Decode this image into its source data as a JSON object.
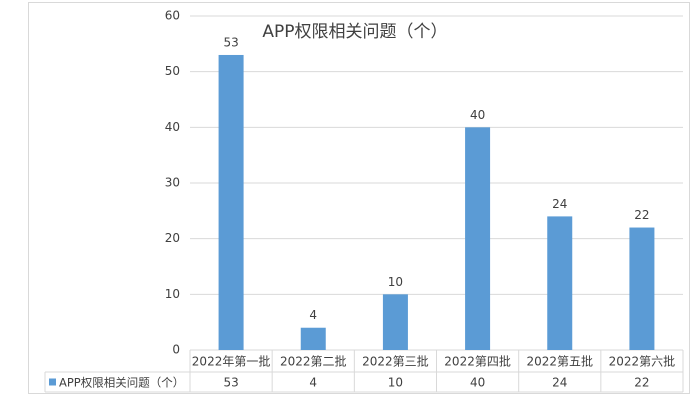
{
  "chart_data": {
    "type": "bar",
    "title": "APP权限相关问题（个）",
    "categories": [
      "2022年第一批",
      "2022第二批",
      "2022第三批",
      "2022第四批",
      "2022第五批",
      "2022第六批"
    ],
    "series": [
      {
        "name": "APP权限相关问题（个）",
        "color": "#5b9bd5",
        "values": [
          53,
          4,
          10,
          40,
          24,
          22
        ]
      }
    ],
    "ylim": [
      0,
      60
    ],
    "yticks": [
      0,
      10,
      20,
      30,
      40,
      50,
      60
    ],
    "grid": true
  }
}
